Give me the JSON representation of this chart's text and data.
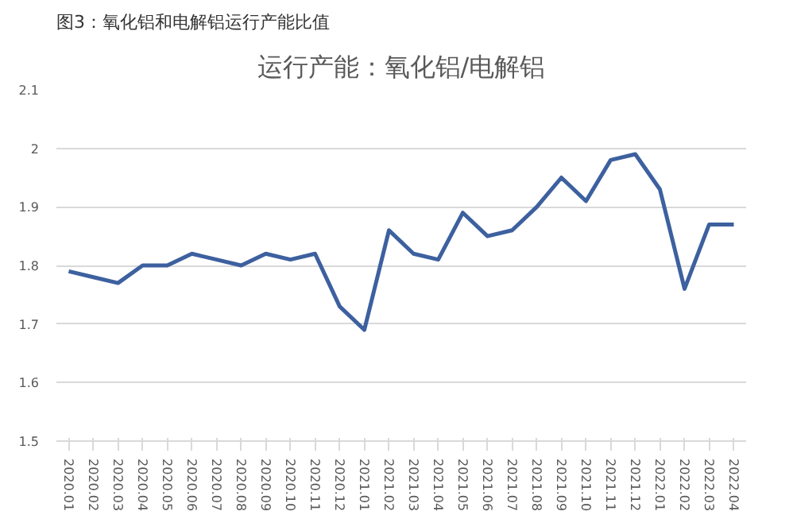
{
  "chart_data": {
    "type": "line",
    "title": "运行产能：氧化铝/电解铝",
    "subtitle": "图3：氧化铝和电解铝运行产能比值",
    "categories": [
      "2020.01",
      "2020.02",
      "2020.03",
      "2020.04",
      "2020.05",
      "2020.06",
      "2020.07",
      "2020.08",
      "2020.09",
      "2020.10",
      "2020.11",
      "2020.12",
      "2021.01",
      "2021.02",
      "2021.03",
      "2021.04",
      "2021.05",
      "2021.06",
      "2021.07",
      "2021.08",
      "2021.09",
      "2021.10",
      "2021.11",
      "2021.12",
      "2022.01",
      "2022.02",
      "2022.03",
      "2022.04"
    ],
    "series": [
      {
        "color": "#3d609f",
        "values": [
          1.79,
          1.78,
          1.77,
          1.8,
          1.8,
          1.82,
          1.81,
          1.8,
          1.82,
          1.81,
          1.82,
          1.73,
          1.69,
          1.86,
          1.82,
          1.81,
          1.89,
          1.85,
          1.86,
          1.9,
          1.95,
          1.91,
          1.98,
          1.99,
          1.93,
          1.76,
          1.87,
          1.87
        ]
      }
    ],
    "ylim": [
      1.5,
      2.1
    ],
    "yticks": [
      1.5,
      1.6,
      1.7,
      1.8,
      1.9,
      2,
      2.1
    ],
    "grid": "y",
    "marker": "none",
    "line_style": "solid"
  }
}
